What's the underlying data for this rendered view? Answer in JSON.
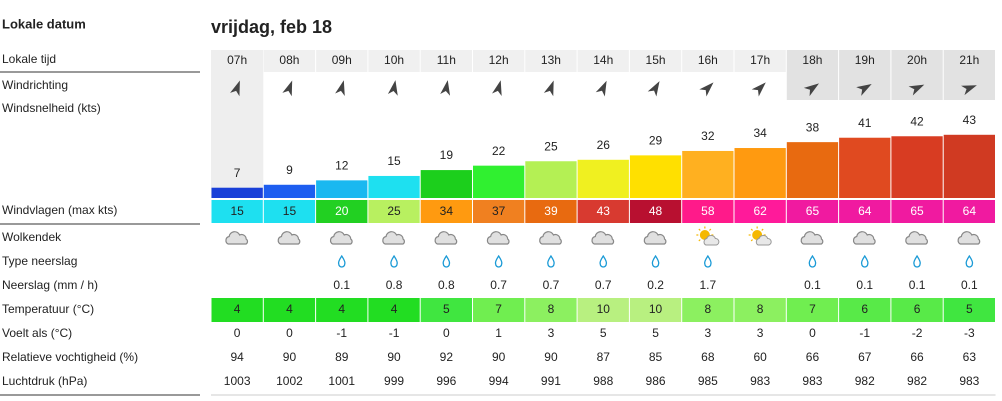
{
  "header": {
    "title": "Lokale datum",
    "date": "vrijdag, feb 18"
  },
  "labels": {
    "time": "Lokale tijd",
    "direction": "Windrichting",
    "speed": "Windsnelheid  (kts)",
    "gusts": "Windvlagen  (max kts)",
    "clouds": "Wolkendek",
    "precip_type": "Type neerslag",
    "precip": "Neerslag  (mm / h)",
    "temperature": "Temperatuur  (°C)",
    "feels_like": "Voelt als  (°C)",
    "humidity": "Relatieve vochtigheid  (%)",
    "pressure": "Luchtdruk  (hPa)"
  },
  "hours": [
    "07h",
    "08h",
    "09h",
    "10h",
    "11h",
    "12h",
    "13h",
    "14h",
    "15h",
    "16h",
    "17h",
    "18h",
    "19h",
    "20h",
    "21h"
  ],
  "wind_direction_deg": [
    20,
    20,
    15,
    10,
    10,
    15,
    20,
    25,
    30,
    45,
    45,
    55,
    60,
    65,
    70
  ],
  "wind_speed": [
    7,
    9,
    12,
    15,
    19,
    22,
    25,
    26,
    29,
    32,
    34,
    38,
    41,
    42,
    43
  ],
  "wind_speed_colors": [
    "#1a40d8",
    "#1e5ef0",
    "#1ab8f0",
    "#1ee0f0",
    "#1ccf1c",
    "#30f030",
    "#b4f054",
    "#f0f020",
    "#ffe000",
    "#ffb020",
    "#ff9a10",
    "#e86a10",
    "#e04a20",
    "#d83c22",
    "#d03a22"
  ],
  "gusts": [
    15,
    15,
    20,
    25,
    34,
    37,
    39,
    43,
    48,
    58,
    62,
    65,
    64,
    65,
    64
  ],
  "gust_colors": [
    "#1ee0f0",
    "#1ee0f0",
    "#22d022",
    "#b8f060",
    "#ff9a10",
    "#f08020",
    "#e86a10",
    "#d83a30",
    "#b81030",
    "#ff1a8a",
    "#ff1a9a",
    "#f01aa0",
    "#f01aa0",
    "#f01aa0",
    "#f01aa0"
  ],
  "cloud_icons": [
    "cloud",
    "cloud",
    "cloud",
    "cloud",
    "cloud",
    "cloud",
    "cloud",
    "cloud",
    "cloud",
    "sun-cloud",
    "sun-cloud",
    "cloud",
    "cloud",
    "cloud",
    "cloud"
  ],
  "precip_type": [
    null,
    null,
    "rain",
    "rain",
    "rain",
    "rain",
    "rain",
    "rain",
    "rain",
    "rain",
    null,
    "rain",
    "rain",
    "rain",
    "rain"
  ],
  "precip": [
    null,
    null,
    0.1,
    0.8,
    0.8,
    0.7,
    0.7,
    0.7,
    0.2,
    1.7,
    null,
    0.1,
    0.1,
    0.1,
    0.1
  ],
  "temperature": [
    4,
    4,
    4,
    4,
    5,
    7,
    8,
    10,
    10,
    8,
    8,
    7,
    6,
    6,
    5
  ],
  "temperature_colors": [
    "#22dd22",
    "#22dd22",
    "#22dd22",
    "#22dd22",
    "#40e640",
    "#70ee50",
    "#8cf060",
    "#b8f080",
    "#b8f080",
    "#8cf060",
    "#8cf060",
    "#70ee50",
    "#58ea48",
    "#58ea48",
    "#40e640"
  ],
  "feels_like": [
    0,
    0,
    -1,
    -1,
    0,
    1,
    3,
    5,
    5,
    3,
    3,
    0,
    -1,
    -2,
    -3
  ],
  "humidity": [
    94,
    90,
    89,
    90,
    92,
    90,
    90,
    87,
    85,
    68,
    60,
    66,
    67,
    66,
    63
  ],
  "pressure": [
    1003,
    1002,
    1001,
    999,
    996,
    994,
    991,
    988,
    986,
    985,
    983,
    983,
    982,
    982,
    983
  ]
}
